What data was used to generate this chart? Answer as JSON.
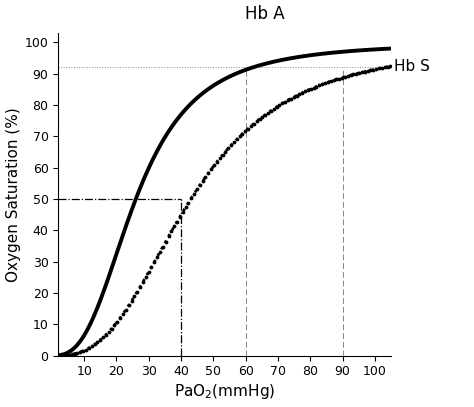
{
  "title": "Hb A",
  "xlabel": "PaO$_2$(mmHg)",
  "ylabel": "Oxygen Saturation (%)",
  "xlim": [
    2,
    105
  ],
  "ylim": [
    0,
    103
  ],
  "xticks": [
    10,
    20,
    30,
    40,
    50,
    60,
    70,
    80,
    90,
    100
  ],
  "yticks": [
    0,
    10,
    20,
    30,
    40,
    50,
    60,
    70,
    80,
    90,
    100
  ],
  "hb_s_label": "Hb S",
  "hline_92": 92,
  "hline_50": 50,
  "vline_40": 40,
  "vline_60": 60,
  "vline_90": 90,
  "hbA_P50": 26,
  "hbA_n": 2.8,
  "hbS_P50": 43,
  "hbS_n": 2.8,
  "curve_color": "#000000",
  "annot_color": "#000000",
  "gray_line_color": "#888888"
}
